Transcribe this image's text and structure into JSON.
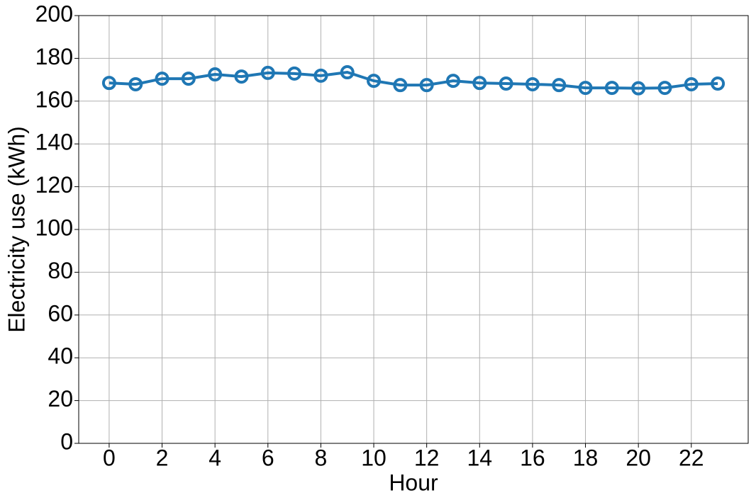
{
  "chart_data": {
    "type": "line",
    "x": [
      0,
      1,
      2,
      3,
      4,
      5,
      6,
      7,
      8,
      9,
      10,
      11,
      12,
      13,
      14,
      15,
      16,
      17,
      18,
      19,
      20,
      21,
      22,
      23
    ],
    "series": [
      {
        "color": "#1f77b4",
        "values": [
          168.5,
          167.9,
          170.5,
          170.5,
          172.5,
          171.5,
          173.2,
          172.9,
          171.9,
          173.5,
          169.5,
          167.5,
          167.5,
          169.5,
          168.5,
          168.2,
          167.9,
          167.5,
          166.2,
          166.2,
          166.0,
          166.2,
          167.9,
          168.2
        ]
      }
    ],
    "x_label": "Hour",
    "y_label": "Electricity use (kWh)",
    "xlim": [
      -1.15,
      24.15
    ],
    "xticks": [
      0,
      2,
      4,
      6,
      8,
      10,
      12,
      14,
      16,
      18,
      20,
      22
    ],
    "ylim": [
      0,
      200
    ],
    "yticks": [
      0,
      20,
      40,
      60,
      80,
      100,
      120,
      140,
      160,
      180,
      200
    ],
    "grid": true
  }
}
